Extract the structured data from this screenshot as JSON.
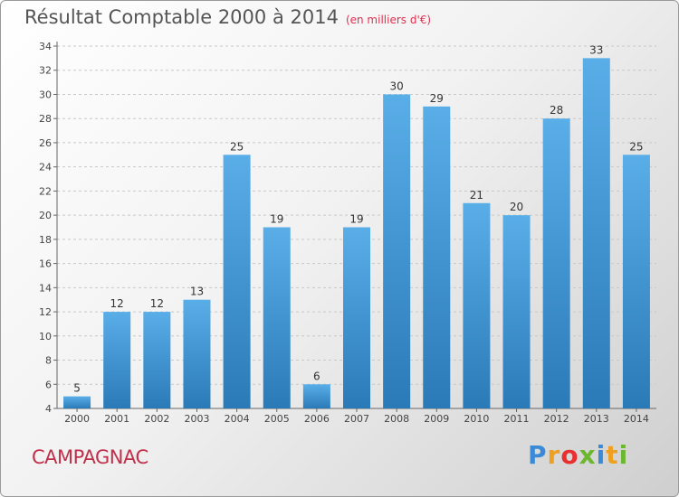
{
  "chart_data": {
    "type": "bar",
    "title": "Résultat Comptable 2000 à 2014",
    "subtitle": "(en milliers d'€)",
    "categories": [
      "2000",
      "2001",
      "2002",
      "2003",
      "2004",
      "2005",
      "2006",
      "2007",
      "2008",
      "2009",
      "2010",
      "2011",
      "2012",
      "2013",
      "2014"
    ],
    "values": [
      5,
      12,
      12,
      13,
      25,
      19,
      6,
      19,
      30,
      29,
      21,
      20,
      28,
      33,
      25
    ],
    "ylim": [
      4,
      34
    ],
    "yticks": [
      4,
      6,
      8,
      10,
      12,
      14,
      16,
      18,
      20,
      22,
      24,
      26,
      28,
      30,
      32,
      34
    ],
    "grid": true,
    "legend": "none"
  },
  "place_name": "CAMPAGNAC",
  "logo": {
    "letters": [
      "P",
      "r",
      "o",
      "x",
      "i",
      "t",
      "i"
    ],
    "colors": [
      "#3a8ad8",
      "#f0a020",
      "#e83030",
      "#6bb82e",
      "#3a8ad8",
      "#f0a020",
      "#6bb82e"
    ]
  },
  "colors": {
    "bar_top": "#5aaee8",
    "bar_bottom": "#2a7ab8",
    "grid": "#c8c8c8"
  }
}
